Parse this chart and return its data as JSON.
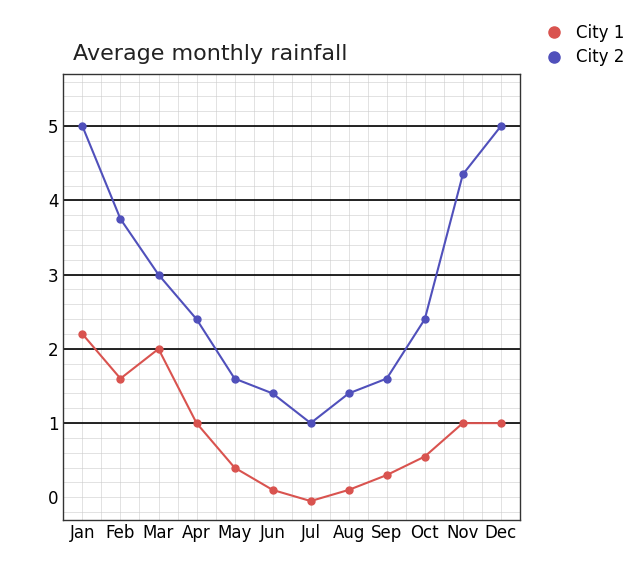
{
  "title": "Average monthly rainfall",
  "months": [
    "Jan",
    "Feb",
    "Mar",
    "Apr",
    "May",
    "Jun",
    "Jul",
    "Aug",
    "Sep",
    "Oct",
    "Nov",
    "Dec"
  ],
  "city1": [
    2.2,
    1.6,
    2.0,
    1.0,
    0.4,
    0.1,
    -0.05,
    0.1,
    0.3,
    0.55,
    1.0,
    1.0
  ],
  "city2": [
    5.0,
    3.75,
    3.0,
    2.4,
    1.6,
    1.4,
    1.0,
    1.4,
    1.6,
    2.4,
    4.35,
    5.0
  ],
  "city1_color": "#d9534f",
  "city2_color": "#5050bb",
  "city1_label": "City 1",
  "city2_label": "City 2",
  "ylim": [
    -0.3,
    5.7
  ],
  "yticks": [
    0,
    1,
    2,
    3,
    4,
    5
  ],
  "background_color": "#ffffff",
  "minor_grid_color": "#cccccc",
  "major_grid_color": "#888888",
  "bold_line_color": "#000000",
  "bold_line_yvals": [
    1,
    2,
    3,
    4,
    5
  ],
  "title_fontsize": 16,
  "marker_size": 5,
  "line_width": 1.5,
  "tick_fontsize": 12
}
